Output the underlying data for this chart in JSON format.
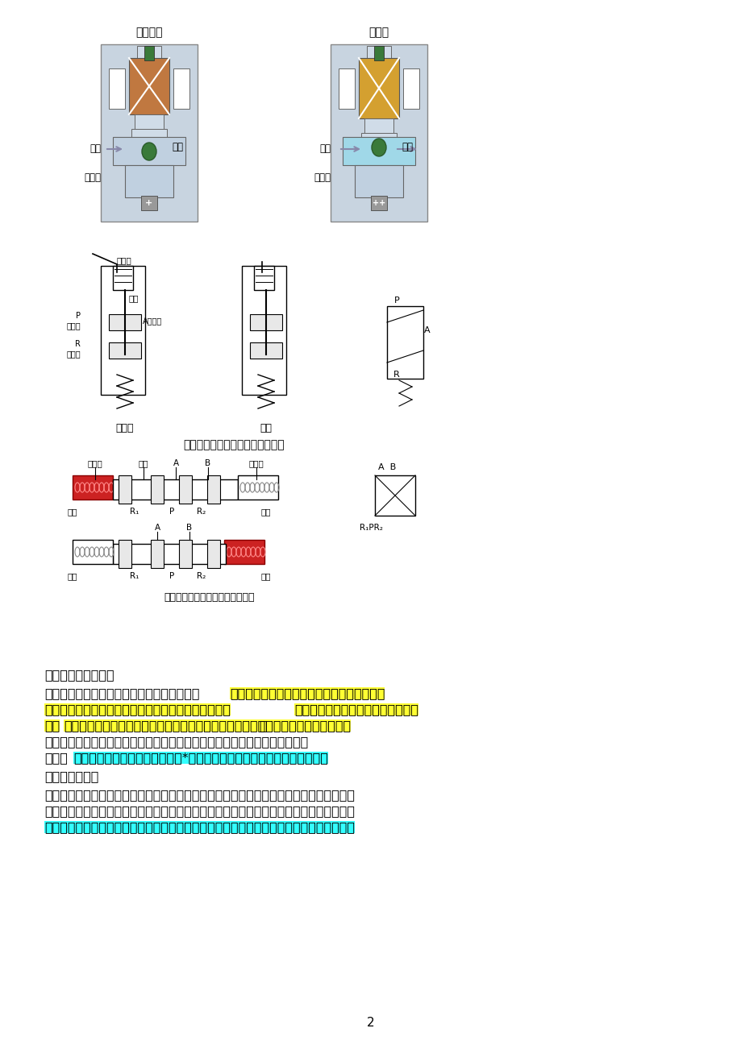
{
  "bg_color": "#ffffff",
  "page_number": "2",
  "title1": "非通电时",
  "title2": "通电时",
  "diagram_caption1": "单电控直动式电磁阀的动作原理图",
  "diagram_caption2": "双电控直动式电磁阀的动作原理图",
  "section1_title": "分布直动式电磁阀：",
  "section1_para": "原理：它是一种直动和先导式相结合的原理，当入口与出口没有压差时，通电后，电磁力直接把先导小阀和主阀关闭件依次向上提起，阀门打开。当入口与出口达到启动压差时，通电后，电磁力先导小阀，主阀下腔压力上升，上腔压力下降，从而利用压差把主阀向上推开；断电时，先导阀利用弹簧力或介质压力推动关闭件，向下移动，使阀门关闭。",
  "section1_special": "特点：在零压差或真空、高压时亦能可*动作，但功率较大，要求必须水平安装。",
  "section2_title": "先导式电磁阀：",
  "section2_para": "原理：通电时，电磁力把先导孔打开，上腔室压力迅速下降，在关闭件周围形成上低下高的压差，流体压力推动关闭件向上移动，阀门打开；断电时，弹簧力把先导孔关闭，入口压力通过旁通孔迅速腔室在关阀件周围形成下低上高的压差，流体压力推动关闭件向下移动，关",
  "highlight_yellow": [
    "当入口与出口没有压差时，通电后，电磁力直接把先导小阀和主阀关闭件依次向上提起，阀门打开。",
    "当入口与出口达到启动压差时，通电后，电磁力先导小阀，主阀下腔压力上升，上腔压力下降，从而利用压差把主阀向上推开"
  ],
  "highlight_cyan": [
    "在零压差或真空、高压时亦能可*动作，但功率较大，要求必须水平安装。",
    "通过旁通孔迅速腔室在关阀件周围形成下低上高的压差，流体压力推动关闭件向下移动，关"
  ]
}
